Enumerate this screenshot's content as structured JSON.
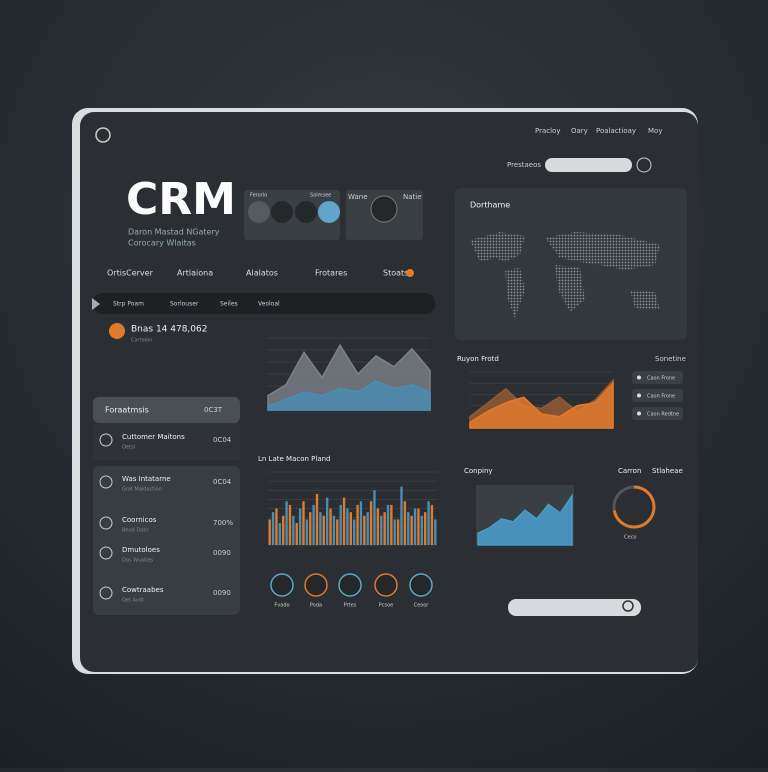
{
  "nav": {
    "items": [
      "Pracloy",
      "Oary",
      "Poalactioay",
      "Moy"
    ],
    "search_label": "Prestaeos"
  },
  "header": {
    "title": "CRM",
    "subtitle_lines": [
      "Daron Mastad NGatery",
      "Corocary Wlaitas"
    ]
  },
  "widgets": {
    "left_labels": [
      "Ferorio",
      "Salmsee"
    ],
    "right_labels": [
      "Wane",
      "Natie"
    ]
  },
  "tabs": [
    "OrtisCerver",
    "Artlaiona",
    "Alalatos",
    "Frotares",
    "Stoats"
  ],
  "filter_bar": [
    "Strp Poam",
    "Sorlouser",
    "Seiles",
    "Veoloal"
  ],
  "balance": {
    "amount": "Bnas 14 478,062",
    "caption": "Cartelon"
  },
  "list": {
    "header": {
      "title": "Foraatmsis",
      "value": "0C3T"
    },
    "items": [
      {
        "title": "Cuttomer Maitons",
        "subtitle": "Oetsi",
        "value": "0C04"
      },
      {
        "title": "Was Intatarne",
        "subtitle": "Grat Maldastion",
        "value": "0C04"
      },
      {
        "title": "Coornicos",
        "subtitle": "Bnod Datir",
        "value": "700%"
      },
      {
        "title": "Dmutoloes",
        "subtitle": "Dos Wuaties",
        "value": "0090"
      },
      {
        "title": "Cowtraabes",
        "subtitle": "Oet Avdt",
        "value": "0090"
      }
    ]
  },
  "trend_chart": {
    "ylim": [
      0,
      100
    ],
    "series": [
      {
        "color": "#7d8288",
        "values": [
          20,
          35,
          80,
          45,
          90,
          50,
          75,
          60,
          85,
          55
        ]
      },
      {
        "color": "#4a8db5",
        "values": [
          5,
          15,
          25,
          20,
          30,
          25,
          40,
          30,
          35,
          25
        ]
      }
    ]
  },
  "map": {
    "title": "Dorthame"
  },
  "revenue_chart": {
    "title": "Ruyon Frotd",
    "ylim": [
      0,
      100
    ],
    "series": [
      {
        "color": "#8f5a36",
        "values": [
          20,
          45,
          70,
          40,
          35,
          55,
          30,
          50,
          85
        ]
      },
      {
        "color": "#e07a2c",
        "values": [
          10,
          30,
          45,
          55,
          25,
          20,
          40,
          45,
          80
        ]
      }
    ],
    "legend_title": "Sonetine",
    "legend": [
      "Caon Frone",
      "Caon Frone",
      "Caon Redtne"
    ]
  },
  "bar_chart": {
    "title": "Ln Late Macon Pland",
    "ylim": [
      0,
      100
    ],
    "series": [
      {
        "color": "#e07a2c",
        "values": [
          35,
          50,
          40,
          55,
          30,
          60,
          45,
          70,
          40,
          50,
          35,
          65,
          45,
          55,
          40,
          60,
          50,
          45,
          55,
          35,
          60,
          40,
          50,
          45,
          55
        ]
      },
      {
        "color": "#4a8db5",
        "values": [
          45,
          30,
          60,
          40,
          50,
          35,
          55,
          45,
          65,
          40,
          55,
          50,
          35,
          60,
          45,
          75,
          40,
          55,
          35,
          80,
          45,
          50,
          40,
          60,
          35
        ]
      }
    ]
  },
  "company": {
    "title": "Conpiny",
    "ylim": [
      0,
      100
    ],
    "values": [
      20,
      30,
      45,
      40,
      60,
      45,
      70,
      55,
      85
    ]
  },
  "donut": {
    "labels": [
      "Carron",
      "Stlaheae"
    ],
    "value": 72,
    "caption": "Ceco"
  },
  "actions": [
    "Fvado",
    "Poda",
    "Prtes",
    "Pcsoe",
    "Ceoor"
  ]
}
